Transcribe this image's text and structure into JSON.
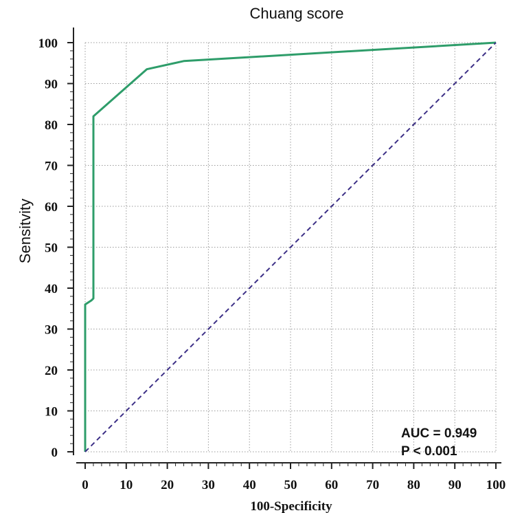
{
  "chart_data": {
    "type": "line",
    "title": "Chuang score",
    "xlabel": "100-Specificity",
    "ylabel": "Sensitvity",
    "xlim": [
      0,
      100
    ],
    "ylim": [
      0,
      100
    ],
    "grid": true,
    "x_ticks": [
      0,
      10,
      20,
      30,
      40,
      50,
      60,
      70,
      80,
      90,
      100
    ],
    "y_ticks": [
      0,
      10,
      20,
      30,
      40,
      50,
      60,
      70,
      80,
      90,
      100
    ],
    "series": [
      {
        "style": "solid",
        "color": "#2e9d6a",
        "points": [
          [
            0,
            0
          ],
          [
            0,
            36
          ],
          [
            1.5,
            37
          ],
          [
            2,
            37.5
          ],
          [
            2,
            82
          ],
          [
            15,
            93.5
          ],
          [
            24,
            95.5
          ],
          [
            100,
            100
          ]
        ]
      },
      {
        "style": "dashed",
        "color": "#3c2f86",
        "points": [
          [
            0,
            0
          ],
          [
            100,
            100
          ]
        ]
      }
    ],
    "annotations": [
      "AUC = 0.949",
      "P < 0.001"
    ]
  }
}
